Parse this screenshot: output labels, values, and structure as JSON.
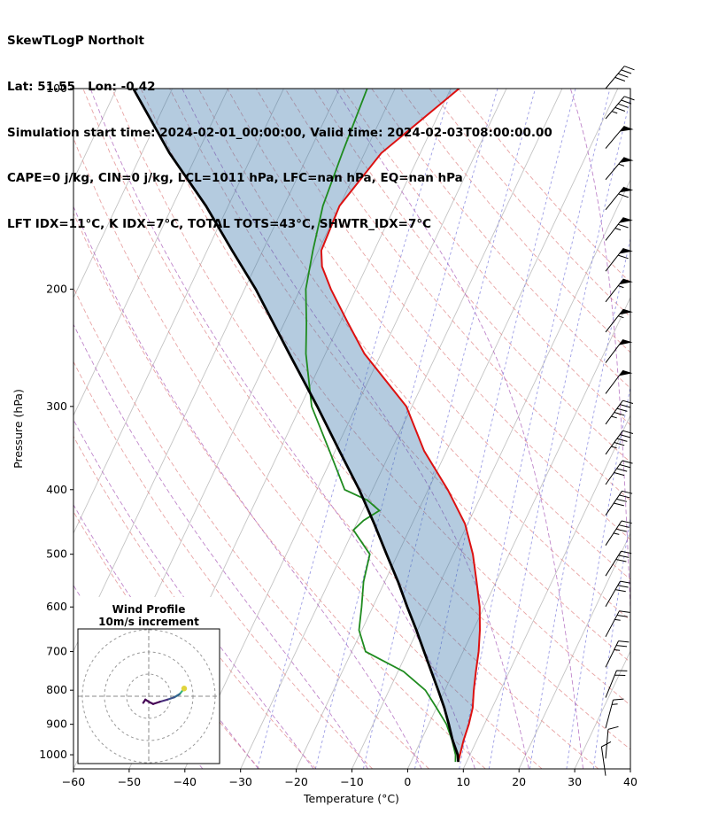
{
  "header": {
    "lines": [
      "SkewTLogP Northolt",
      "Lat: 51.55   Lon: -0.42",
      "Simulation start time: 2024-02-01_00:00:00, Valid time: 2024-02-03T08:00:00.00",
      "CAPE=0 j/kg, CIN=0 j/kg, LCL=1011 hPa, LFC=nan hPa, EQ=nan hPa",
      "LFT IDX=11°C, K IDX=7°C, TOTAL TOTS=43°C, SHWTR_IDX=7°C"
    ]
  },
  "axes": {
    "x_label": "Temperature (°C)",
    "y_label": "Pressure (hPa)",
    "x_ticks": [
      -60,
      -50,
      -40,
      -30,
      -20,
      -10,
      0,
      10,
      20,
      30,
      40
    ],
    "y_ticks": [
      100,
      200,
      300,
      400,
      500,
      600,
      700,
      800,
      900,
      1000
    ],
    "x_range": [
      -60,
      40
    ],
    "p_range": [
      100,
      1050
    ]
  },
  "chart_data": {
    "type": "line",
    "title": "SkewTLogP Northolt",
    "skew_rotation_deg": 30,
    "series": [
      {
        "name": "temperature",
        "color": "#dd1111",
        "pressure": [
          1025,
          1000,
          950,
          900,
          850,
          800,
          750,
          700,
          650,
          600,
          550,
          500,
          450,
          400,
          350,
          300,
          250,
          225,
          200,
          185,
          175,
          150,
          125,
          100
        ],
        "values": [
          8.5,
          8.2,
          7.6,
          7.2,
          6.5,
          5.2,
          4.0,
          2.8,
          1.2,
          -0.8,
          -3.5,
          -6.5,
          -10.5,
          -16.5,
          -24.0,
          -31.0,
          -43.0,
          -48.5,
          -54.5,
          -58.0,
          -59.5,
          -60.0,
          -57.0,
          -48.5
        ]
      },
      {
        "name": "dewpoint",
        "color": "#1f8b1f",
        "pressure": [
          1025,
          1000,
          950,
          900,
          850,
          800,
          750,
          700,
          650,
          600,
          550,
          500,
          460,
          445,
          430,
          415,
          400,
          370,
          350,
          300,
          250,
          225,
          200,
          175,
          150,
          125,
          100
        ],
        "values": [
          8.0,
          7.4,
          5.5,
          3.2,
          0.0,
          -3.5,
          -9.0,
          -17.5,
          -20.5,
          -22.0,
          -23.8,
          -25.0,
          -30.0,
          -29.0,
          -27.0,
          -30.0,
          -35.0,
          -38.5,
          -41.0,
          -48.0,
          -53.5,
          -56.0,
          -59.0,
          -61.0,
          -63.0,
          -64.0,
          -65.0
        ]
      },
      {
        "name": "parcel",
        "color": "#000000",
        "pressure": [
          1025,
          1000,
          950,
          900,
          850,
          800,
          750,
          700,
          650,
          600,
          550,
          500,
          450,
          400,
          350,
          300,
          250,
          200,
          175,
          150,
          125,
          100
        ],
        "values": [
          8.5,
          7.8,
          5.6,
          3.6,
          1.4,
          -1.2,
          -4.0,
          -7.0,
          -10.2,
          -13.8,
          -17.6,
          -22.0,
          -26.8,
          -32.4,
          -39.2,
          -47.0,
          -56.5,
          -68.0,
          -75.5,
          -84.0,
          -95.0,
          -107.0
        ]
      }
    ],
    "shading": {
      "between": [
        "parcel",
        "temperature"
      ],
      "color": "rgba(58,119,170,0.38)"
    },
    "background": {
      "isotherms": {
        "start": -120,
        "end": 40,
        "step": 10,
        "color": "#c4c4c4"
      },
      "dry_adiabats": {
        "start": -30,
        "end": 160,
        "step": 10,
        "color": "#e08585"
      },
      "moist_adiabats": {
        "start": -40,
        "end": 40,
        "step": 10,
        "color": "#a95cb8"
      },
      "mixing_ratios": {
        "values": [
          0.0004,
          0.001,
          0.002,
          0.004,
          0.007,
          0.01,
          0.016,
          0.024,
          0.032
        ],
        "color": "#7b7bdc"
      }
    },
    "wind_barbs": [
      {
        "p": 100,
        "speed": 40,
        "angle": 40
      },
      {
        "p": 111,
        "speed": 45,
        "angle": 40
      },
      {
        "p": 123,
        "speed": 50,
        "angle": 40
      },
      {
        "p": 137,
        "speed": 55,
        "angle": 40
      },
      {
        "p": 152,
        "speed": 60,
        "angle": 39
      },
      {
        "p": 169,
        "speed": 65,
        "angle": 38
      },
      {
        "p": 188,
        "speed": 60,
        "angle": 38
      },
      {
        "p": 209,
        "speed": 55,
        "angle": 38
      },
      {
        "p": 232,
        "speed": 55,
        "angle": 38
      },
      {
        "p": 258,
        "speed": 50,
        "angle": 37
      },
      {
        "p": 287,
        "speed": 50,
        "angle": 37
      },
      {
        "p": 319,
        "speed": 45,
        "angle": 36
      },
      {
        "p": 354,
        "speed": 45,
        "angle": 36
      },
      {
        "p": 393,
        "speed": 40,
        "angle": 35
      },
      {
        "p": 437,
        "speed": 40,
        "angle": 34
      },
      {
        "p": 485,
        "speed": 35,
        "angle": 33
      },
      {
        "p": 539,
        "speed": 30,
        "angle": 32
      },
      {
        "p": 599,
        "speed": 30,
        "angle": 30
      },
      {
        "p": 665,
        "speed": 25,
        "angle": 28
      },
      {
        "p": 739,
        "speed": 25,
        "angle": 26
      },
      {
        "p": 821,
        "speed": 20,
        "angle": 22
      },
      {
        "p": 912,
        "speed": 15,
        "angle": 15
      },
      {
        "p": 1013,
        "speed": 10,
        "angle": 5
      },
      {
        "p": 1075,
        "speed": 10,
        "angle": -8
      }
    ],
    "hodograph": {
      "title": "Wind Profile",
      "subtitle": "10m/s increment",
      "ring_increment_ms": 10,
      "rings": 3,
      "trace": [
        {
          "u": 16,
          "v": 3.5,
          "c": "#e0d43c"
        },
        {
          "u": 14,
          "v": 1.0,
          "c": "#35b779"
        },
        {
          "u": 11.5,
          "v": -0.5,
          "c": "#31688e"
        },
        {
          "u": 8.5,
          "v": -1.5,
          "c": "#3b528b"
        },
        {
          "u": 5,
          "v": -2.5,
          "c": "#472d7b"
        },
        {
          "u": 2,
          "v": -3.5,
          "c": "#440154"
        },
        {
          "u": 0,
          "v": -2.5,
          "c": "#440154"
        },
        {
          "u": -1.5,
          "v": -1.5,
          "c": "#440154"
        },
        {
          "u": -2.5,
          "v": -3,
          "c": "#440154"
        }
      ]
    }
  }
}
